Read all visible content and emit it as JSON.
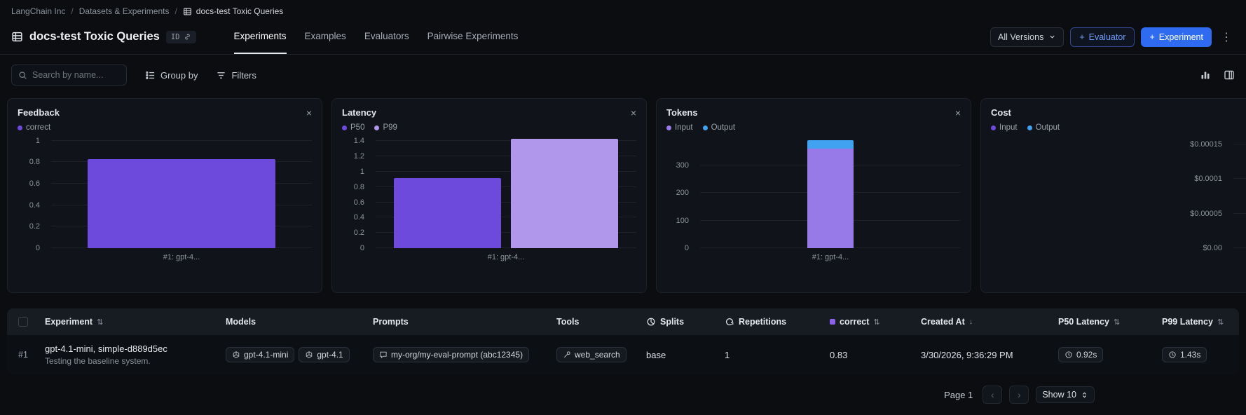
{
  "breadcrumb": {
    "items": [
      "LangChain Inc",
      "Datasets & Experiments",
      "docs-test Toxic Queries"
    ],
    "separator": "/"
  },
  "header": {
    "title": "docs-test Toxic Queries",
    "id_badge": "ID",
    "tabs": [
      {
        "label": "Experiments",
        "active": true
      },
      {
        "label": "Examples",
        "active": false
      },
      {
        "label": "Evaluators",
        "active": false
      },
      {
        "label": "Pairwise Experiments",
        "active": false
      }
    ],
    "all_versions_label": "All Versions",
    "evaluator_button": "Evaluator",
    "experiment_button": "Experiment"
  },
  "toolbar": {
    "search_placeholder": "Search by name...",
    "group_by_label": "Group by",
    "filters_label": "Filters"
  },
  "chart_data": [
    {
      "type": "bar",
      "title": "Feedback",
      "categories": [
        "#1: gpt-4..."
      ],
      "series": [
        {
          "name": "correct",
          "color": "#6d49dc",
          "values": [
            0.83
          ]
        }
      ],
      "ytick_values": [
        0,
        0.2,
        0.4,
        0.6,
        0.8,
        1
      ],
      "ytick_labels": [
        "0",
        "0.2",
        "0.4",
        "0.6",
        "0.8",
        "1"
      ],
      "ylim": [
        0,
        1.03
      ],
      "bar_width_pct": 72,
      "stacked": false,
      "grid": true,
      "legend_position": "top-left"
    },
    {
      "type": "bar",
      "title": "Latency",
      "categories": [
        "#1: gpt-4..."
      ],
      "series": [
        {
          "name": "P50",
          "color": "#6d49dc",
          "values": [
            0.92
          ]
        },
        {
          "name": "P99",
          "color": "#b197ec",
          "values": [
            1.43
          ]
        }
      ],
      "ytick_values": [
        0,
        0.2,
        0.4,
        0.6,
        0.8,
        1,
        1.2,
        1.4
      ],
      "ytick_labels": [
        "0",
        "0.2",
        "0.4",
        "0.6",
        "0.8",
        "1",
        "1.2",
        "1.4"
      ],
      "ylim": [
        0,
        1.45
      ],
      "bar_width_pct": 41,
      "stacked": false,
      "grid": true,
      "legend_position": "top-left"
    },
    {
      "type": "bar",
      "title": "Tokens",
      "categories": [
        "#1: gpt-4..."
      ],
      "series": [
        {
          "name": "Input",
          "color": "#9879e8",
          "values": [
            360
          ]
        },
        {
          "name": "Output",
          "color": "#41a2f1",
          "values": [
            30
          ]
        }
      ],
      "ytick_values": [
        0,
        100,
        200,
        300
      ],
      "ytick_labels": [
        "0",
        "100",
        "200",
        "300"
      ],
      "ylim": [
        0,
        400
      ],
      "bar_width_pct": 18,
      "stacked": true,
      "grid": true,
      "legend_position": "top-left"
    },
    {
      "type": "bar",
      "title": "Cost",
      "categories": [],
      "series": [
        {
          "name": "Input",
          "color": "#6d49dc",
          "values": []
        },
        {
          "name": "Output",
          "color": "#41a2f1",
          "values": []
        }
      ],
      "ytick_values": [
        0,
        5e-05,
        0.0001,
        0.00015
      ],
      "ytick_labels": [
        "$0.00",
        "$0.00005",
        "$0.0001",
        "$0.00015"
      ],
      "ylim": [
        0,
        0.00016
      ],
      "bar_width_pct": 30,
      "stacked": true,
      "grid": true,
      "legend_position": "top-left"
    }
  ],
  "table": {
    "headers": [
      {
        "label": "Experiment"
      },
      {
        "label": "Models"
      },
      {
        "label": "Prompts"
      },
      {
        "label": "Tools"
      },
      {
        "label": "Splits"
      },
      {
        "label": "Repetitions"
      },
      {
        "label": "correct"
      },
      {
        "label": "Created At"
      },
      {
        "label": "P50 Latency"
      },
      {
        "label": "P99 Latency"
      }
    ],
    "rows": [
      {
        "index": "#1",
        "name": "gpt-4.1-mini, simple-d889d5ec",
        "description": "Testing the baseline system.",
        "models": [
          "gpt-4.1-mini",
          "gpt-4.1"
        ],
        "prompt": "my-org/my-eval-prompt (abc12345)",
        "tools": [
          "web_search"
        ],
        "splits": "base",
        "repetitions": "1",
        "correct": "0.83",
        "created_at": "3/30/2026, 9:36:29 PM",
        "p50_latency": "0.92s",
        "p99_latency": "1.43s"
      }
    ]
  },
  "footer": {
    "page_label": "Page 1",
    "prev": "‹",
    "next": "›",
    "show_label": "Show 10"
  },
  "icons": {
    "sort": "⇅",
    "sort_desc": "↓",
    "close": "×",
    "kebab": "⋮",
    "plus": "+"
  },
  "colors": {
    "accent_blue": "#2e6bf0",
    "purple": "#6d49dc",
    "light_purple": "#b197ec",
    "blue": "#41a2f1",
    "correct_dot": "#8a63e8"
  }
}
